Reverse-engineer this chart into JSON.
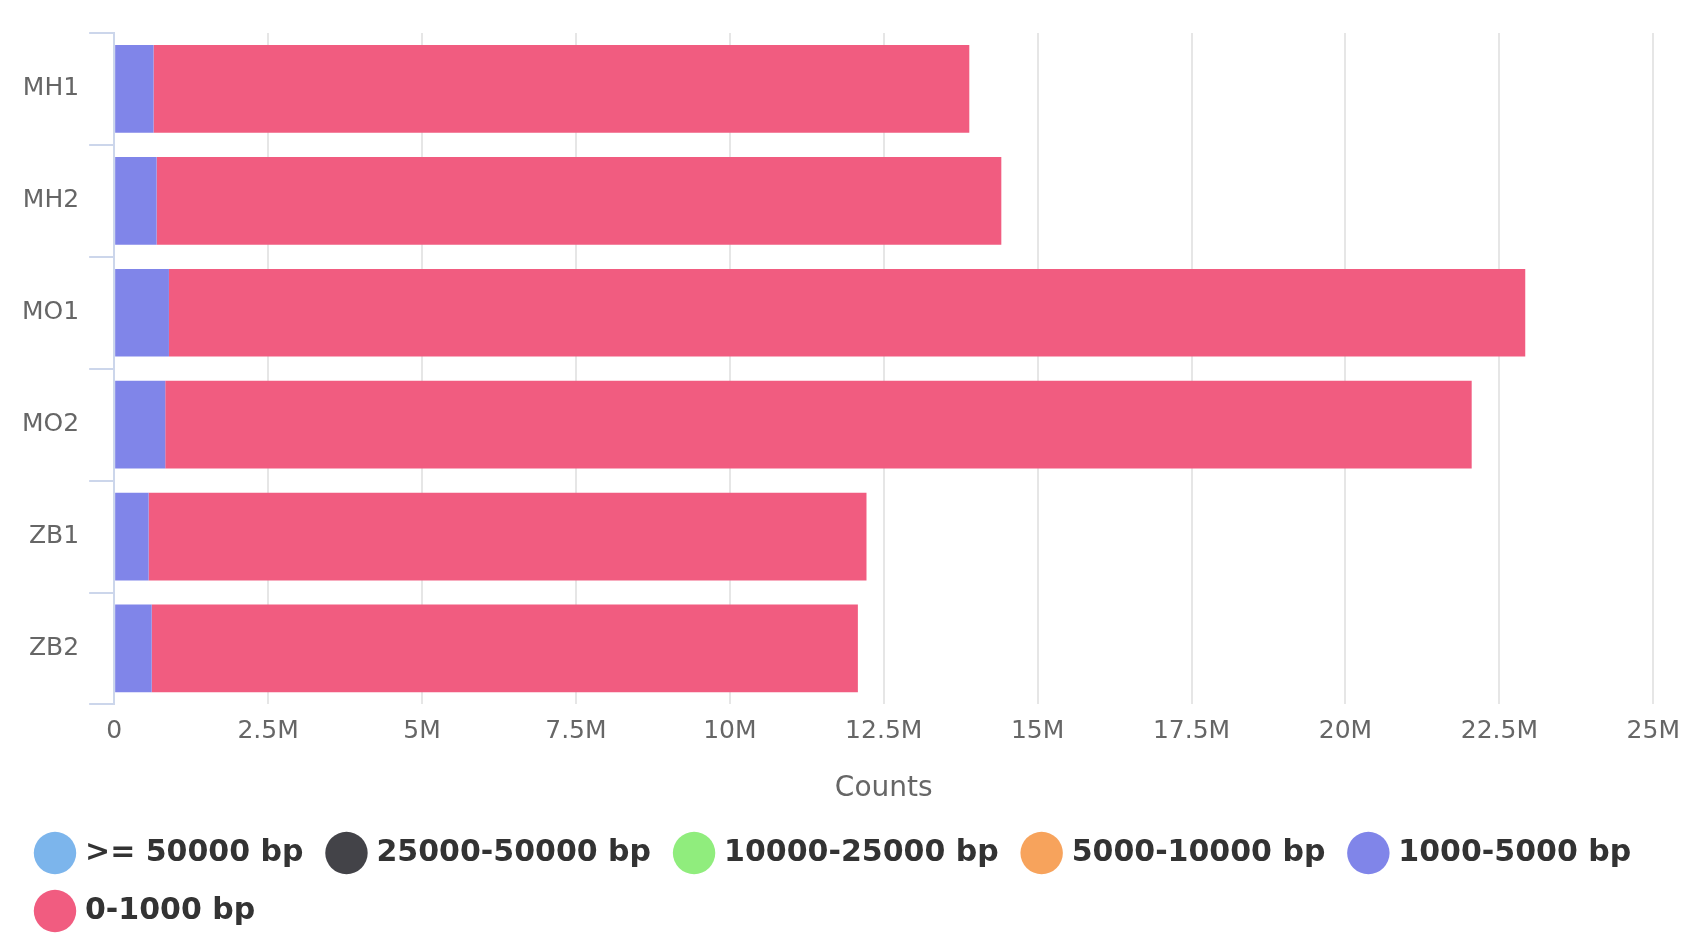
{
  "chart_data": {
    "type": "bar",
    "orientation": "horizontal",
    "stacked": true,
    "xlabel": "Counts",
    "categories": [
      "MH1",
      "MH2",
      "MO1",
      "MO2",
      "ZB1",
      "ZB2"
    ],
    "series": [
      {
        "name": ">= 50000 bp",
        "color": "#7cb5ec",
        "values": [
          0,
          0,
          0,
          0,
          0,
          0
        ]
      },
      {
        "name": "25000-50000 bp",
        "color": "#434348",
        "values": [
          0,
          0,
          0,
          0,
          0,
          0
        ]
      },
      {
        "name": "10000-25000 bp",
        "color": "#90ed7d",
        "values": [
          0,
          0,
          0,
          0,
          0,
          0
        ]
      },
      {
        "name": "5000-10000 bp",
        "color": "#f7a35c",
        "values": [
          0,
          0,
          0,
          0,
          0,
          0
        ]
      },
      {
        "name": "1000-5000 bp",
        "color": "#8085e9",
        "values": [
          640000,
          690000,
          890000,
          830000,
          560000,
          610000
        ]
      },
      {
        "name": "0-1000 bp",
        "color": "#f15c80",
        "values": [
          13250000,
          13720000,
          22030000,
          21220000,
          11660000,
          11470000
        ]
      }
    ],
    "xlim": [
      0,
      25000000
    ],
    "xticks": [
      0,
      {
        "value": 2500000,
        "label": "2.5M"
      },
      {
        "value": 5000000,
        "label": "5M"
      },
      {
        "value": 7500000,
        "label": "7.5M"
      },
      {
        "value": 10000000,
        "label": "10M"
      },
      {
        "value": 12500000,
        "label": "12.5M"
      },
      {
        "value": 15000000,
        "label": "15M"
      },
      {
        "value": 17500000,
        "label": "17.5M"
      },
      {
        "value": 20000000,
        "label": "20M"
      },
      {
        "value": 22500000,
        "label": "22.5M"
      },
      {
        "value": 25000000,
        "label": "25M"
      }
    ],
    "grid": "x",
    "legend": "bottom"
  }
}
